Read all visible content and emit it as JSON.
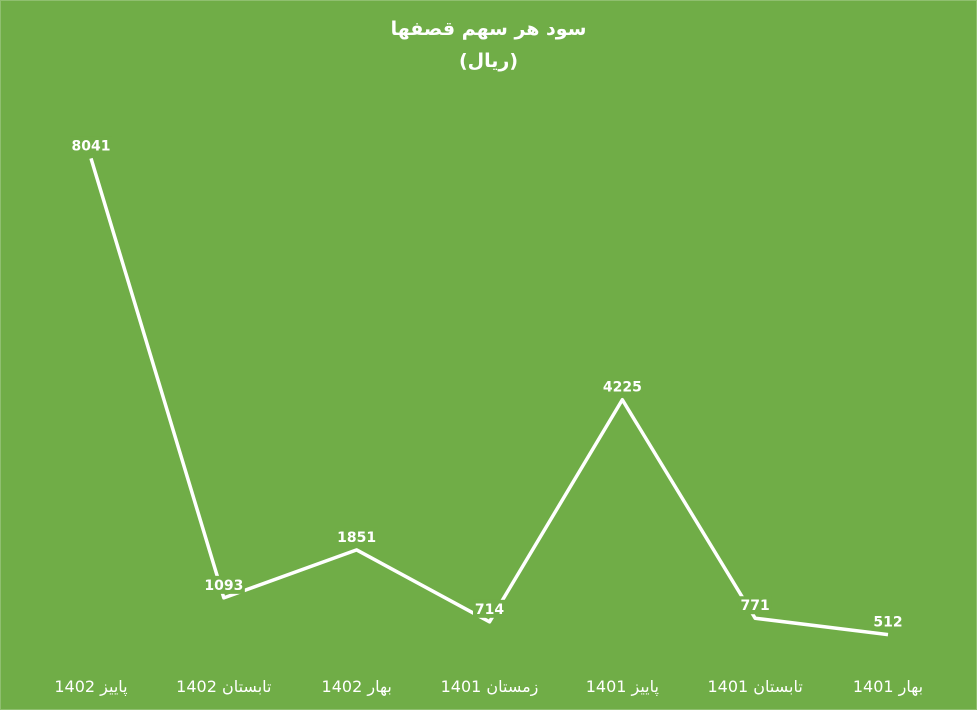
{
  "chart_data": {
    "type": "line",
    "title": "سود هر سهم قصفها",
    "subtitle": "(ریال)",
    "categories": [
      "پاییز 1402",
      "تابستان 1402",
      "بهار 1402",
      "زمستان 1401",
      "پاییز 1401",
      "تابستان 1401",
      "بهار 1401"
    ],
    "series": [
      {
        "values": [
          8041,
          1093,
          1851,
          714,
          4225,
          771,
          512
        ]
      }
    ],
    "data_labels": [
      "8041",
      "1093",
      "1851",
      "714",
      "4225",
      "771",
      "512"
    ],
    "ylim": [
      0,
      8500
    ],
    "grid": false,
    "legend": "none",
    "drop_lines": true
  },
  "colors": {
    "background": "#70ad47",
    "line": "#ffffff",
    "text": "#ffffff"
  }
}
